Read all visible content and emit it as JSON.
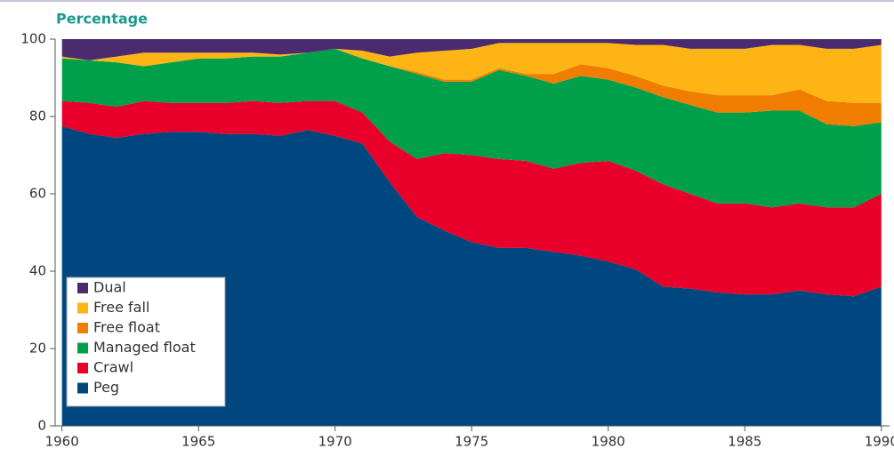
{
  "chart_data": {
    "type": "stacked_area",
    "y_label": "Percentage",
    "x": [
      1960,
      1961,
      1962,
      1963,
      1964,
      1965,
      1966,
      1967,
      1968,
      1969,
      1970,
      1971,
      1972,
      1973,
      1974,
      1975,
      1976,
      1977,
      1978,
      1979,
      1980,
      1981,
      1982,
      1983,
      1984,
      1985,
      1986,
      1987,
      1988,
      1989,
      1990
    ],
    "series": [
      {
        "name": "Peg",
        "color": "#00477f",
        "values": [
          77.5,
          75.5,
          74.5,
          75.5,
          76,
          76,
          75.5,
          75.5,
          75,
          76.5,
          75,
          73,
          63,
          54,
          50.5,
          47.5,
          46,
          46,
          45,
          44,
          42.5,
          40.5,
          36,
          35.5,
          34.5,
          34,
          34,
          35,
          34,
          33.5,
          36
        ]
      },
      {
        "name": "Crawl",
        "color": "#e8002a",
        "values": [
          6.5,
          8,
          8,
          8.5,
          7.5,
          7.5,
          8,
          8.5,
          8.5,
          7.5,
          9,
          8,
          10.5,
          15,
          20,
          22.5,
          23,
          22.5,
          21.5,
          24,
          26,
          25.5,
          26.5,
          24.5,
          23,
          23.5,
          22.5,
          22.5,
          22.5,
          23,
          24
        ]
      },
      {
        "name": "Managed float",
        "color": "#00a04a",
        "values": [
          11,
          11,
          11.5,
          9,
          10.5,
          11.5,
          11.5,
          11.5,
          12,
          12.5,
          13.5,
          14,
          19.5,
          22,
          18.5,
          19,
          23,
          22,
          22,
          22.5,
          21,
          21.5,
          22.5,
          23,
          23.5,
          23.5,
          25,
          24,
          21.5,
          21,
          18.5
        ]
      },
      {
        "name": "Free float",
        "color": "#f07d00",
        "values": [
          0,
          0,
          0,
          0,
          0,
          0,
          0,
          0,
          0,
          0,
          0,
          0,
          0,
          0.5,
          0.5,
          0.5,
          0.5,
          0.5,
          2.5,
          3,
          3,
          3,
          3,
          3.5,
          4.5,
          4.5,
          4,
          5.5,
          6,
          6,
          5
        ]
      },
      {
        "name": "Free fall",
        "color": "#fdb515",
        "values": [
          0.5,
          0,
          1.5,
          3.5,
          2.5,
          1.5,
          1.5,
          1,
          0.5,
          0,
          0,
          2,
          2.5,
          5,
          7.5,
          8,
          6.5,
          8,
          8,
          5.5,
          6.5,
          8,
          10.5,
          11,
          12,
          12,
          13,
          11.5,
          13.5,
          14,
          15
        ]
      },
      {
        "name": "Dual",
        "color": "#4c2a6e",
        "values": [
          4.5,
          5.5,
          4.5,
          3.5,
          3.5,
          3.5,
          3.5,
          3.5,
          4,
          3.5,
          2.5,
          3,
          4.5,
          3.5,
          3,
          2.5,
          1,
          1,
          1,
          1,
          1,
          1.5,
          1.5,
          2.5,
          2.5,
          2.5,
          1.5,
          1.5,
          2.5,
          2.5,
          1.5
        ]
      }
    ],
    "xlim": [
      1959.75,
      1990.3
    ],
    "xticks": [
      1960,
      1965,
      1970,
      1975,
      1980,
      1985,
      1990
    ],
    "ylim": [
      0,
      100
    ],
    "yticks": [
      0,
      20,
      40,
      60,
      80,
      100
    ],
    "legend": "lower left"
  }
}
